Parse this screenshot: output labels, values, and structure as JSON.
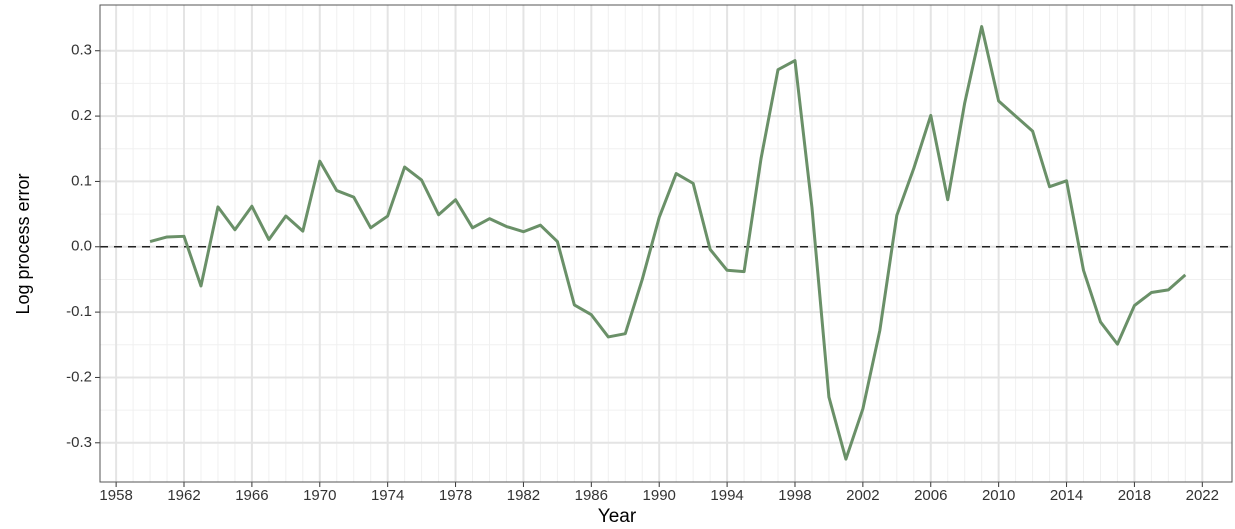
{
  "chart_data": {
    "type": "line",
    "x_label": "Year",
    "y_label": "Log process error",
    "x": [
      1960,
      1961,
      1962,
      1963,
      1964,
      1965,
      1966,
      1967,
      1968,
      1969,
      1970,
      1971,
      1972,
      1973,
      1974,
      1975,
      1976,
      1977,
      1978,
      1979,
      1980,
      1981,
      1982,
      1983,
      1984,
      1985,
      1986,
      1987,
      1988,
      1989,
      1990,
      1991,
      1992,
      1993,
      1994,
      1995,
      1996,
      1997,
      1998,
      1999,
      2000,
      2001,
      2002,
      2003,
      2004,
      2005,
      2006,
      2007,
      2008,
      2009,
      2010,
      2011,
      2012,
      2013,
      2014,
      2015,
      2016,
      2017,
      2018,
      2019,
      2020,
      2021
    ],
    "series": [
      {
        "color": "#6a9068",
        "values": [
          0.008,
          0.015,
          0.016,
          -0.06,
          0.061,
          0.026,
          0.062,
          0.011,
          0.047,
          0.024,
          0.131,
          0.086,
          0.076,
          0.029,
          0.047,
          0.122,
          0.102,
          0.049,
          0.072,
          0.029,
          0.043,
          0.031,
          0.023,
          0.033,
          0.008,
          -0.089,
          -0.104,
          -0.138,
          -0.133,
          -0.05,
          0.045,
          0.112,
          0.097,
          -0.004,
          -0.036,
          -0.038,
          0.135,
          0.271,
          0.285,
          0.06,
          -0.23,
          -0.325,
          -0.248,
          -0.128,
          0.048,
          0.12,
          0.201,
          0.072,
          0.22,
          0.337,
          0.223,
          0.2,
          0.177,
          0.092,
          0.101,
          -0.036,
          -0.115,
          -0.149,
          -0.09,
          -0.07,
          -0.066,
          -0.043
        ]
      }
    ],
    "xlim": [
      1957.05,
      2023.75
    ],
    "ylim": [
      -0.36,
      0.37
    ],
    "xticks": [
      1958,
      1962,
      1966,
      1970,
      1974,
      1978,
      1982,
      1986,
      1990,
      1994,
      1998,
      2002,
      2006,
      2010,
      2014,
      2018,
      2022
    ],
    "yticks": [
      -0.3,
      -0.2,
      -0.1,
      {
        "value": 0,
        "label": "0.0"
      },
      0.1,
      0.2,
      0.3
    ],
    "hline": 0,
    "grid": true
  }
}
